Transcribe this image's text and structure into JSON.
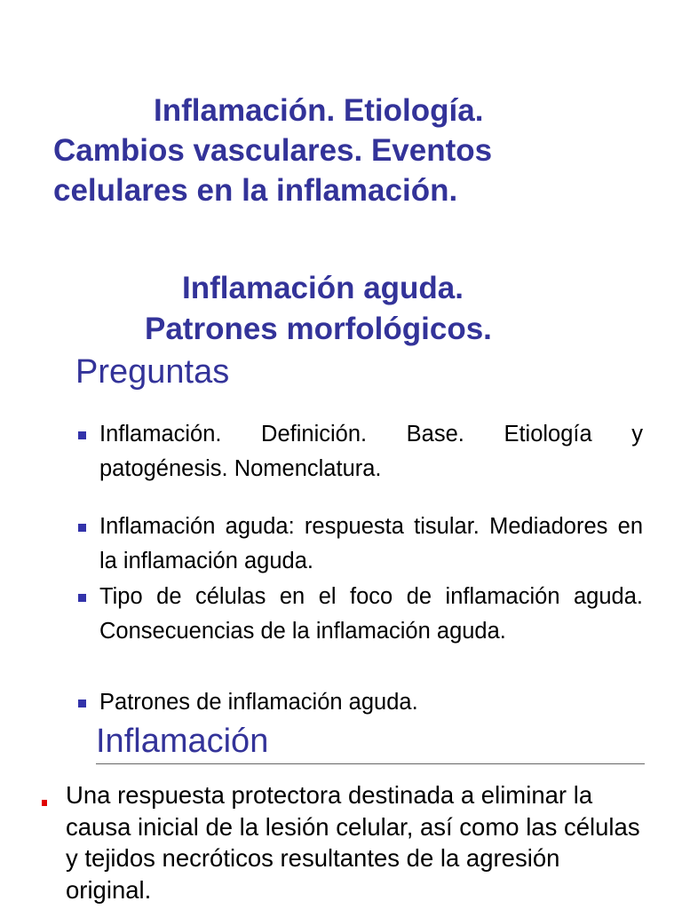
{
  "title": {
    "lines": [
      "Inflamación. Etiología.",
      "Cambios vasculares. Eventos",
      "celulares en la inflamación."
    ]
  },
  "subtitle": {
    "lines": [
      "Inflamación aguda.",
      "Patrones morfológicos."
    ]
  },
  "questions": {
    "heading": "Preguntas",
    "items": [
      "Inflamación. Definición. Base. Etiología y patogénesis. Nomenclatura.",
      "Inflamación aguda: respuesta tisular. Mediadores en la inflamación aguda.",
      "Tipo de células en el foco de inflamación aguda. Consecuencias de la inflamación aguda.",
      "Patrones de inflamación aguda."
    ],
    "bullet_color": "#3333aa"
  },
  "definition": {
    "heading": "Inflamación",
    "text": "Una respuesta protectora destinada a eliminar la causa inicial de la lesión celular, así como las células y tejidos necróticos resultantes de la agresión original.",
    "bullet_color": "#e00000"
  },
  "colors": {
    "accent": "#333399",
    "text": "#000000"
  }
}
